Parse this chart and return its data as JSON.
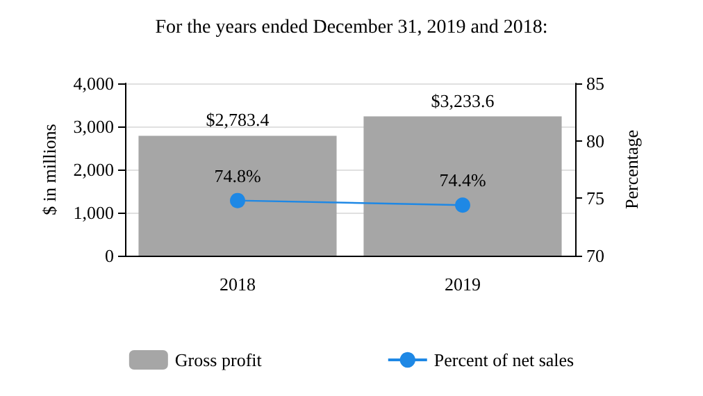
{
  "chart_data": {
    "type": "bar",
    "title": "For the years ended December 31, 2019 and 2018:",
    "ylabel": "$ in millions",
    "y2label": "Percentage",
    "categories": [
      "2018",
      "2019"
    ],
    "series": [
      {
        "name": "Gross profit",
        "color": "#a6a6a6",
        "values": [
          2783.4,
          3233.6
        ],
        "value_labels": [
          "$2,783.4",
          "$3,233.6"
        ]
      },
      {
        "name": "Percent of net sales",
        "type": "line",
        "axis": "y2",
        "color": "#1e88e5",
        "values": [
          74.8,
          74.4
        ],
        "value_labels": [
          "74.8%",
          "74.4%"
        ],
        "marker": "circle"
      }
    ],
    "ylim": [
      0,
      4000
    ],
    "yticks": [
      0,
      {
        "value": 1000,
        "label": "1,000"
      },
      {
        "value": 2000,
        "label": "2,000"
      },
      {
        "value": 3000,
        "label": "3,000"
      },
      {
        "value": 4000,
        "label": "4,000"
      }
    ],
    "y2lim": [
      70,
      85
    ],
    "y2ticks": [
      70,
      75,
      80,
      85
    ],
    "grid": "y",
    "legend": "bottom"
  }
}
